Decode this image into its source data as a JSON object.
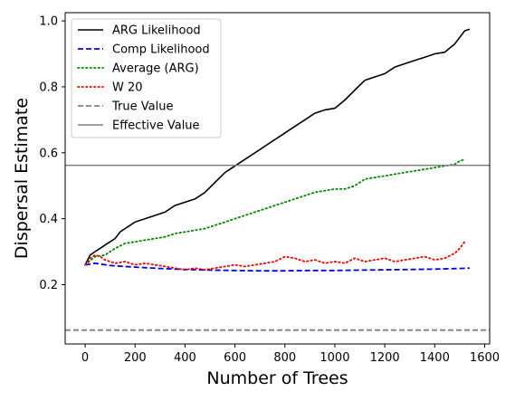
{
  "chart_data": {
    "type": "line",
    "xlabel": "Number of Trees",
    "ylabel": "Dispersal Estimate",
    "xlim": [
      -80,
      1620
    ],
    "ylim": [
      0.02,
      1.025
    ],
    "xticks": [
      0,
      200,
      400,
      600,
      800,
      1000,
      1200,
      1400,
      1600
    ],
    "yticks": [
      0.2,
      0.4,
      0.6,
      0.8,
      1.0
    ],
    "ytick_labels": [
      "0.2",
      "0.4",
      "0.6",
      "0.8",
      "1.0"
    ],
    "grid": false,
    "legend_position": "top-left",
    "series": [
      {
        "name": "ARG Likelihood",
        "color": "#000000",
        "style": "solid",
        "x": [
          0,
          20,
          40,
          60,
          80,
          100,
          120,
          140,
          160,
          180,
          200,
          240,
          280,
          320,
          360,
          400,
          440,
          480,
          520,
          560,
          600,
          640,
          680,
          720,
          760,
          800,
          840,
          880,
          920,
          960,
          1000,
          1040,
          1080,
          1120,
          1160,
          1200,
          1240,
          1280,
          1320,
          1360,
          1400,
          1440,
          1480,
          1500,
          1520,
          1540
        ],
        "y": [
          0.26,
          0.29,
          0.3,
          0.31,
          0.32,
          0.33,
          0.34,
          0.36,
          0.37,
          0.38,
          0.39,
          0.4,
          0.41,
          0.42,
          0.44,
          0.45,
          0.46,
          0.48,
          0.51,
          0.54,
          0.56,
          0.58,
          0.6,
          0.62,
          0.64,
          0.66,
          0.68,
          0.7,
          0.72,
          0.73,
          0.735,
          0.76,
          0.79,
          0.82,
          0.83,
          0.84,
          0.86,
          0.87,
          0.88,
          0.89,
          0.9,
          0.905,
          0.93,
          0.95,
          0.97,
          0.975
        ]
      },
      {
        "name": "Comp Likelihood",
        "color": "#0000ee",
        "style": "dashed",
        "x": [
          0,
          40,
          100,
          200,
          300,
          400,
          500,
          600,
          700,
          800,
          900,
          1000,
          1100,
          1200,
          1300,
          1400,
          1500,
          1540
        ],
        "y": [
          0.26,
          0.265,
          0.258,
          0.253,
          0.249,
          0.246,
          0.244,
          0.243,
          0.242,
          0.242,
          0.243,
          0.243,
          0.244,
          0.245,
          0.246,
          0.247,
          0.249,
          0.25
        ]
      },
      {
        "name": "Average (ARG)",
        "color": "#008800",
        "style": "dotted",
        "x": [
          0,
          40,
          80,
          120,
          160,
          200,
          240,
          280,
          320,
          360,
          400,
          440,
          480,
          520,
          560,
          600,
          640,
          680,
          720,
          760,
          800,
          840,
          880,
          920,
          960,
          1000,
          1040,
          1080,
          1120,
          1160,
          1200,
          1240,
          1280,
          1320,
          1360,
          1400,
          1440,
          1480,
          1500,
          1520
        ],
        "y": [
          0.26,
          0.285,
          0.29,
          0.31,
          0.325,
          0.33,
          0.335,
          0.34,
          0.345,
          0.355,
          0.36,
          0.365,
          0.37,
          0.38,
          0.39,
          0.4,
          0.41,
          0.42,
          0.43,
          0.44,
          0.45,
          0.46,
          0.47,
          0.48,
          0.485,
          0.49,
          0.49,
          0.5,
          0.52,
          0.525,
          0.53,
          0.535,
          0.54,
          0.545,
          0.55,
          0.555,
          0.56,
          0.565,
          0.575,
          0.58
        ]
      },
      {
        "name": "W 20",
        "color": "#ee0000",
        "style": "dotted",
        "x": [
          0,
          20,
          40,
          60,
          80,
          100,
          120,
          160,
          200,
          240,
          280,
          320,
          360,
          400,
          440,
          480,
          520,
          560,
          600,
          640,
          680,
          720,
          760,
          800,
          840,
          880,
          920,
          960,
          1000,
          1040,
          1080,
          1120,
          1160,
          1200,
          1240,
          1280,
          1320,
          1360,
          1400,
          1440,
          1480,
          1500,
          1520
        ],
        "y": [
          0.26,
          0.28,
          0.29,
          0.285,
          0.275,
          0.27,
          0.265,
          0.27,
          0.26,
          0.265,
          0.26,
          0.255,
          0.25,
          0.245,
          0.25,
          0.245,
          0.25,
          0.255,
          0.26,
          0.255,
          0.26,
          0.265,
          0.27,
          0.285,
          0.28,
          0.27,
          0.275,
          0.265,
          0.27,
          0.265,
          0.28,
          0.27,
          0.275,
          0.28,
          0.27,
          0.275,
          0.28,
          0.285,
          0.275,
          0.28,
          0.295,
          0.31,
          0.33
        ]
      },
      {
        "name": "True Value",
        "color": "#808080",
        "style": "dashed",
        "hline": 0.062
      },
      {
        "name": "Effective Value",
        "color": "#808080",
        "style": "solid",
        "hline": 0.562
      }
    ]
  }
}
